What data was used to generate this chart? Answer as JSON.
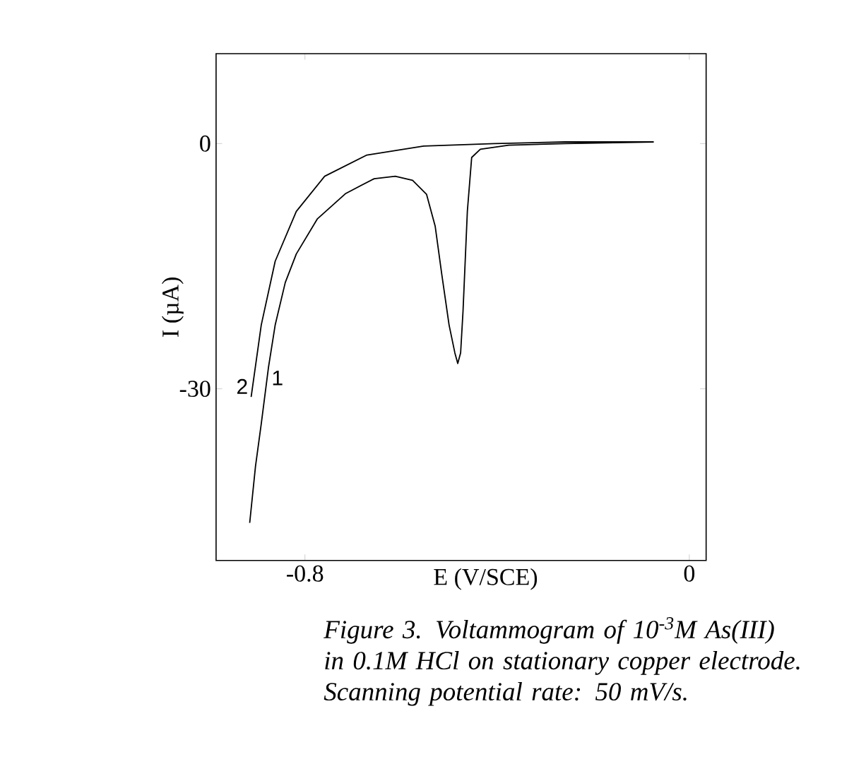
{
  "chart_data": {
    "type": "line",
    "xlabel": "E (V/SCE)",
    "ylabel": "I (µA)",
    "xlim": [
      -0.985,
      0.035
    ],
    "ylim": [
      -51,
      11
    ],
    "xticks": [
      {
        "value": -0.8,
        "label": "-0.8"
      },
      0
    ],
    "yticks": [
      0,
      -30
    ],
    "grid": false,
    "marker": "none",
    "line_style": "solid",
    "series": [
      {
        "name": "2",
        "color": "#000000",
        "x": [
          -0.912,
          -0.891,
          -0.862,
          -0.818,
          -0.759,
          -0.671,
          -0.553,
          -0.406,
          -0.259,
          -0.074
        ],
        "values": [
          -31.0,
          -22.2,
          -14.4,
          -8.3,
          -4.0,
          -1.4,
          -0.3,
          0,
          0.2,
          0.2
        ]
      },
      {
        "name": "1",
        "color": "#000000",
        "x": [
          -0.915,
          -0.903,
          -0.891,
          -0.876,
          -0.862,
          -0.841,
          -0.818,
          -0.774,
          -0.715,
          -0.656,
          -0.612,
          -0.576,
          -0.547,
          -0.529,
          -0.515,
          -0.5,
          -0.488,
          -0.482,
          -0.476,
          -0.471,
          -0.462,
          -0.453,
          -0.435,
          -0.376,
          -0.259,
          -0.076
        ],
        "values": [
          -46.4,
          -39.5,
          -34.3,
          -27.4,
          -22.2,
          -17.0,
          -13.5,
          -9.2,
          -6.1,
          -4.3,
          -4.0,
          -4.5,
          -6.2,
          -10.1,
          -16.1,
          -22.2,
          -25.6,
          -26.9,
          -25.6,
          -20.5,
          -8.3,
          -1.7,
          -0.7,
          -0.2,
          0,
          0.2
        ]
      }
    ],
    "annotations": [
      "*Figure 3. Voltammogram of 10$^{-3}$M As(III) in 0.1M HCl on stationary copper electrode. Scanning potential rate: 50 mV/s.*"
    ]
  }
}
